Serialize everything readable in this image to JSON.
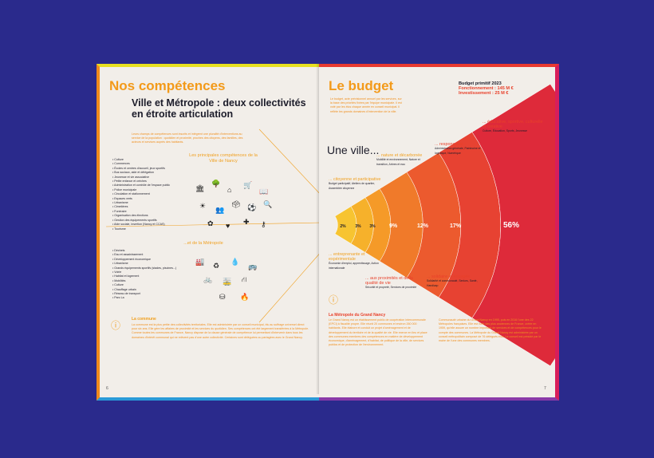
{
  "left_page": {
    "title": "Nos compétences",
    "subtitle_line1": "Ville et Métropole : deux collectivités",
    "subtitle_line2": "en étroite articulation",
    "intro": "Leurs champs de compétences sont inscrits et intègrent une pluralité d'interventions au service de la population : quotidien et proximité, proches des citoyens, des familles, des acteurs et services auprès des habitants.",
    "ville_label": "Les principales compétences de la Ville de Nancy",
    "metropole_label": "...et de la Métropole",
    "ville_list": [
      "• Culture",
      "• Commerces",
      "• Écoles et centres d'accueil, jeux sportifs",
      "• Bus sociaux, aide et délégation",
      "• Jeunesse et vie associative",
      "• Petite enfance et crèches",
      "• Administration et contrôle de l'espace public",
      "• Police municipale",
      "• Circulation et stationnement",
      "• Espaces verts",
      "• Urbanisme",
      "• Cimetières",
      "• Funéraire",
      "• Organisation des élections",
      "• Gestion des équipements sportifs",
      "• Aide sociale, insertion (Nancy et CCAS)",
      "• Tourisme"
    ],
    "metropole_list": [
      "• Déchets",
      "• Eau et assainissement",
      "• Développement économique",
      "• Urbanisme",
      "• Grands équipements sportifs (stades, piscines...)",
      "• Voirie",
      "• Habitat et logement",
      "• Mobilités",
      "• Culture",
      "• Chauffage urbain",
      "• Réseau de transport",
      "• Parc La"
    ],
    "commune_title": "La commune",
    "commune_text": "La commune est la plus petite des collectivités territoriales. Elle est administrée par un conseil municipal, élu au suffrage universel direct pour six ans. Elle gère les affaires de proximité et les services du quotidien. Ses compétences ont été largement transférées à la Métropole. Comme toutes les communes de France, Nancy dispose de la clause générale de compétence lui permettant d'intervenir dans tous les domaines d'intérêt communal qui ne relèvent pas d'une autre collectivité. Certaines sont déléguées ou partagées avec le Grand Nancy.",
    "page_number": "6"
  },
  "right_page": {
    "title": "Le budget",
    "budget_heading": "Budget primitif 2023",
    "budget_fonctionnement": "Fonctionnement : 145 M €",
    "budget_investissement": "Investissement : 25 M €",
    "intro": "Le budget, acte prévisionnel annuel par les services, sur la base des priorités fixées par l'équipe municipale. Il est voté par les élus chaque année en conseil municipal. Il reflète les grands domaines d'intervention de la ville.",
    "une_ville": "Une ville...",
    "segments": [
      {
        "label": "... citoyenne et participative",
        "detail": "Budget participatif, Ateliers de quartier, Assemblée citoyenne",
        "pct": "2%"
      },
      {
        "label": "... entreprenante et expérimentale",
        "detail": "Économie d'emploi, apprentissage, Action internationale",
        "pct": "3%"
      },
      {
        "label": "... nature et décarbonée",
        "detail": "Mobilité et environnement, Nature et transition, Arbres et eau",
        "pct": "3%"
      },
      {
        "label": "... aux proximités et de la qualité de vie",
        "detail": "Sécurité et propreté, Services de proximité",
        "pct": "9%"
      },
      {
        "label": "... responsable",
        "detail": "Administration générale, Patrimoine et logistique, Numérique",
        "pct": "12%"
      },
      {
        "label": "... solidaire et engagée",
        "detail": "Solidarité et communauté, Seniors, Santé, Handicap",
        "pct": "17%"
      },
      {
        "label": "... éducative, sportive, culturelle et créative",
        "detail": "Culture, Éducation, Sports, Jeunesse",
        "pct": "56%"
      }
    ],
    "metropole_title": "La Métropole du Grand Nancy",
    "metropole_text": "Le Grand Nancy est un établissement public de coopération intercommunale (EPCI) à fiscalité propre. Elle réunit 20 communes et environ 260 000 habitants. Elle élabore et conduit un projet d'aménagement et de développement du territoire et de la qualité de vie. Elle exerce en lieu et place des communes membres des compétences en matière de développement économique, d'aménagement, d'habitat, de politique de la ville, de services publics et de protection de l'environnement.",
    "metropole_text2": "Communauté urbaine du Grand Nancy en 1995, puis en 2016 l'une des 22 Métropoles françaises. Elle est l'une des plus anciennes de France, créée en 1959, qu'elle assure un nombre important de services et de compétences pour le compte des communes. La Métropole du Grand Nancy est administrée par un conseil métropolitain composé de 76 délégués élus. Le conseil est présidé par le maire de l'une des communes membres.",
    "page_number": "7"
  },
  "colors": {
    "background": "#2a2a8c",
    "paper": "#f2eee9",
    "accent_orange": "#f39a1a",
    "accent_red": "#e8402a"
  }
}
